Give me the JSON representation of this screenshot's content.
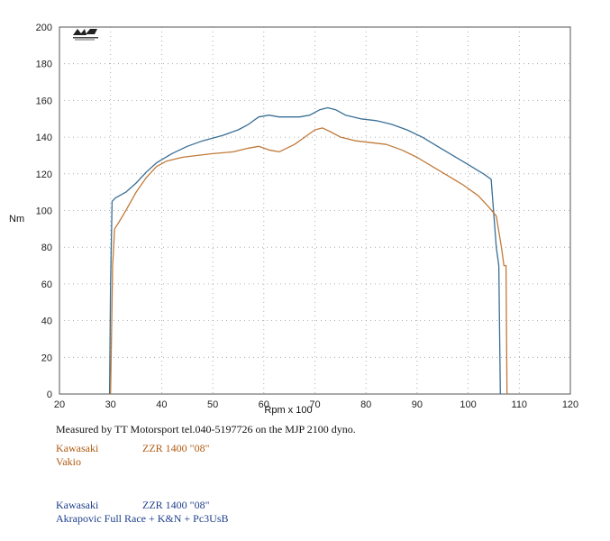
{
  "caption": "Measured by TT Motorsport tel.040-5197726 on the MJP 2100 dyno.",
  "legend": {
    "stock": {
      "make": "Kawasaki",
      "model": "ZZR 1400 \"08\"",
      "config": "Vakio",
      "color": "#c07a3a"
    },
    "tuned": {
      "make": "Kawasaki",
      "model": "ZZR 1400 \"08\"",
      "config": "Akrapovic Full Race + K&N + Pc3UsB",
      "color": "#3a6f95"
    }
  },
  "chart_data": {
    "type": "line",
    "xlabel": "Rpm x 100",
    "ylabel": "Nm",
    "xlim": [
      20,
      120
    ],
    "ylim": [
      0,
      200
    ],
    "x_ticks": [
      20,
      30,
      40,
      50,
      60,
      70,
      80,
      90,
      100,
      110,
      120
    ],
    "y_ticks": [
      0,
      20,
      40,
      60,
      80,
      100,
      120,
      140,
      160,
      180,
      200
    ],
    "grid": true,
    "series": [
      {
        "name": "Akrapovic Full Race + K&N + Pc3UsB",
        "color": "#3a6f95",
        "points": [
          [
            29.8,
            0
          ],
          [
            30.0,
            60
          ],
          [
            30.3,
            105
          ],
          [
            31,
            107
          ],
          [
            33,
            110
          ],
          [
            35,
            115
          ],
          [
            37,
            121
          ],
          [
            39,
            126
          ],
          [
            42,
            131
          ],
          [
            45,
            135
          ],
          [
            48,
            138
          ],
          [
            52,
            141
          ],
          [
            55,
            144
          ],
          [
            57,
            147
          ],
          [
            59,
            151
          ],
          [
            61,
            152
          ],
          [
            63,
            151
          ],
          [
            65,
            151
          ],
          [
            67,
            151
          ],
          [
            69,
            152
          ],
          [
            71,
            155
          ],
          [
            72.5,
            156
          ],
          [
            74,
            155
          ],
          [
            76,
            152
          ],
          [
            79,
            150
          ],
          [
            82,
            149
          ],
          [
            85,
            147
          ],
          [
            88,
            144
          ],
          [
            91,
            140
          ],
          [
            94,
            135
          ],
          [
            97,
            130
          ],
          [
            100,
            125
          ],
          [
            103,
            120
          ],
          [
            104.5,
            117
          ],
          [
            105.5,
            80
          ],
          [
            106,
            70
          ],
          [
            106.3,
            0
          ]
        ]
      },
      {
        "name": "Vakio",
        "color": "#c07a3a",
        "points": [
          [
            30.0,
            0
          ],
          [
            30.4,
            70
          ],
          [
            30.8,
            90
          ],
          [
            31.5,
            93
          ],
          [
            33,
            100
          ],
          [
            35,
            110
          ],
          [
            37,
            118
          ],
          [
            39,
            124
          ],
          [
            41,
            127
          ],
          [
            44,
            129
          ],
          [
            47,
            130
          ],
          [
            50,
            131
          ],
          [
            54,
            132
          ],
          [
            57,
            134
          ],
          [
            59,
            135
          ],
          [
            61,
            133
          ],
          [
            63,
            132
          ],
          [
            66,
            136
          ],
          [
            68,
            140
          ],
          [
            70,
            144
          ],
          [
            71.5,
            145
          ],
          [
            73,
            143
          ],
          [
            75,
            140
          ],
          [
            78,
            138
          ],
          [
            81,
            137
          ],
          [
            84,
            136
          ],
          [
            87,
            133
          ],
          [
            90,
            129
          ],
          [
            93,
            124
          ],
          [
            96,
            119
          ],
          [
            99,
            114
          ],
          [
            102,
            108
          ],
          [
            104,
            102
          ],
          [
            105.5,
            97
          ],
          [
            106.5,
            80
          ],
          [
            107,
            70
          ],
          [
            107.4,
            70
          ],
          [
            107.6,
            0
          ]
        ]
      }
    ]
  }
}
